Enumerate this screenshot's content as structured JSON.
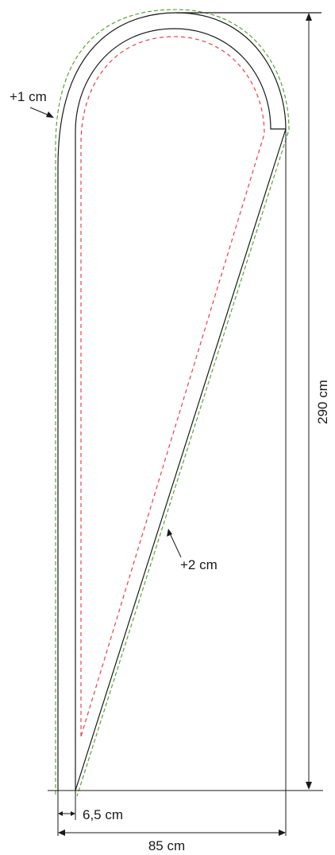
{
  "labels": {
    "seam_allowance_top": "+1 cm",
    "seam_allowance_diagonal": "+2 cm",
    "height": "290 cm",
    "pole_pocket_width": "6,5 cm",
    "total_width": "85 cm"
  },
  "colors": {
    "outline": "#1a1a1a",
    "outer_dash": "#4f9a2c",
    "inner_dash": "#e8313b"
  }
}
